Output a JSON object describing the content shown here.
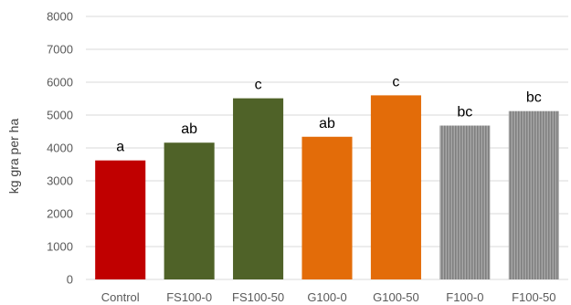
{
  "chart_data": {
    "type": "bar",
    "title": "",
    "xlabel": "",
    "ylabel": "kg gra per ha",
    "ylim": [
      0,
      8000
    ],
    "yticks": [
      0,
      1000,
      2000,
      3000,
      4000,
      5000,
      6000,
      7000,
      8000
    ],
    "grid": true,
    "legend": "none",
    "categories": [
      "Control",
      "FS100-0",
      "FS100-50",
      "G100-0",
      "G100-50",
      "F100-0",
      "F100-50"
    ],
    "values": [
      3620,
      4160,
      5510,
      4340,
      5600,
      4680,
      5120
    ],
    "data_labels": [
      "a",
      "ab",
      "c",
      "ab",
      "c",
      "bc",
      "bc"
    ],
    "colors": [
      "#c00000",
      "#4f6228",
      "#4f6228",
      "#e36c09",
      "#e36c09",
      "#808080",
      "#808080"
    ],
    "patterns": [
      "solid",
      "solid",
      "solid",
      "solid",
      "solid",
      "vertical-stripes",
      "vertical-stripes"
    ]
  }
}
